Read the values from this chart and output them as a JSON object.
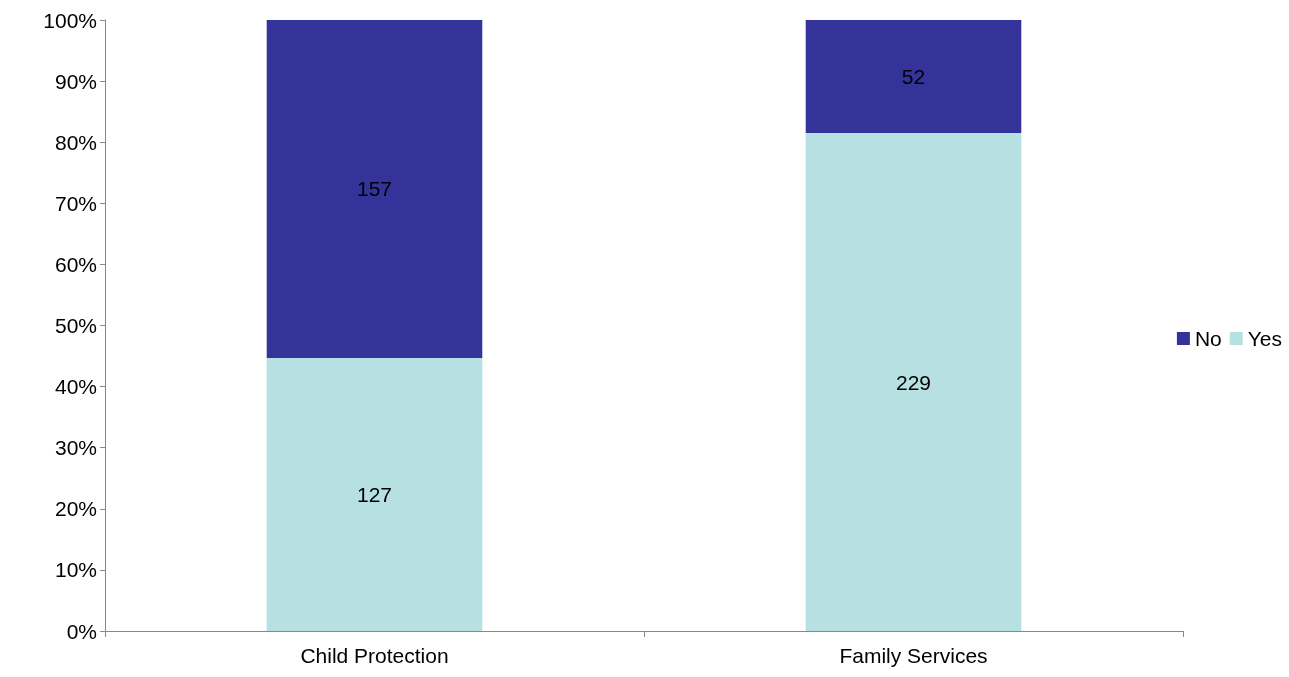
{
  "chart_data": {
    "type": "bar",
    "stacked": true,
    "categories": [
      "Child Protection",
      "Family Services"
    ],
    "series": [
      {
        "name": "Yes",
        "color": "#b7e0e3",
        "values": [
          44.7,
          81.5
        ]
      },
      {
        "name": "No",
        "color": "#333399",
        "values": [
          55.3,
          18.5
        ]
      }
    ],
    "annotations": [
      "127",
      "229",
      "157",
      "52"
    ],
    "ylim": [
      0,
      100
    ],
    "yticks": [
      {
        "value": 0,
        "label": "0%"
      },
      {
        "value": 10,
        "label": "10%"
      },
      {
        "value": 20,
        "label": "20%"
      },
      {
        "value": 30,
        "label": "30%"
      },
      {
        "value": 40,
        "label": "40%"
      },
      {
        "value": 50,
        "label": "50%"
      },
      {
        "value": 60,
        "label": "60%"
      },
      {
        "value": 70,
        "label": "70%"
      },
      {
        "value": 80,
        "label": "80%"
      },
      {
        "value": 90,
        "label": "90%"
      },
      {
        "value": 100,
        "label": "100%"
      }
    ],
    "grid": false,
    "legend": "right"
  }
}
